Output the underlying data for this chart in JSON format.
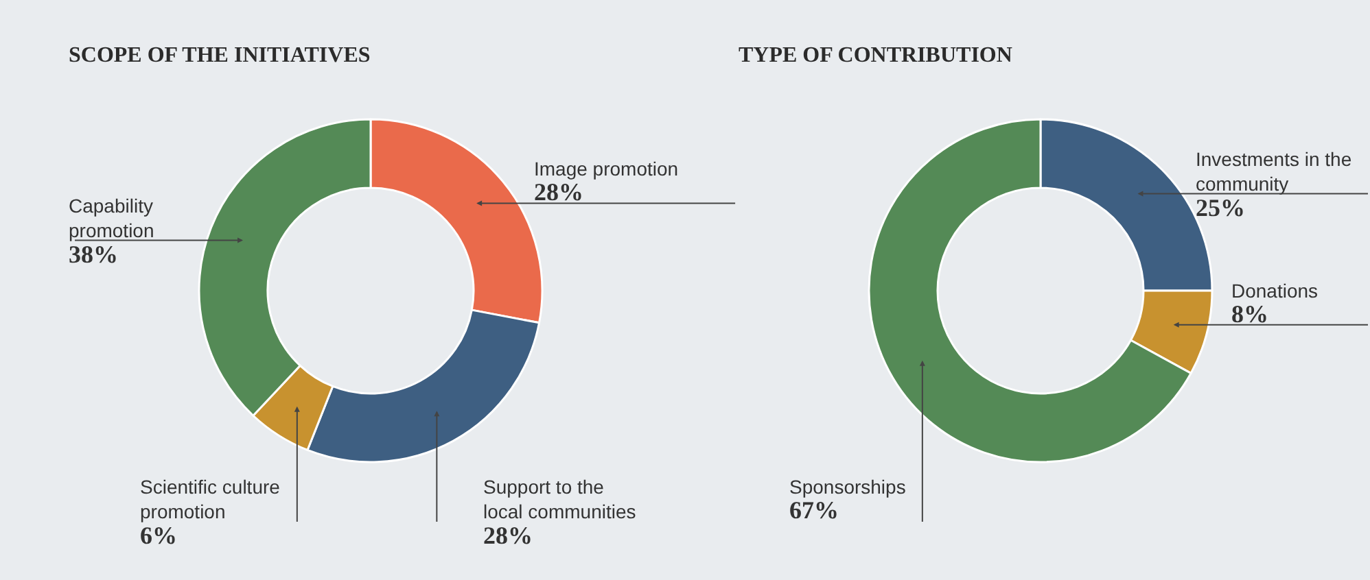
{
  "chart_data": [
    {
      "type": "donut",
      "title": "SCOPE OF THE INITIATIVES",
      "categories": [
        "Image promotion",
        "Support to the local communities",
        "Scientific culture promotion",
        "Capability promotion"
      ],
      "values": [
        28,
        28,
        6,
        38
      ],
      "colors": [
        "#ea6a4b",
        "#3e5f82",
        "#c8922f",
        "#548a56"
      ],
      "value_labels": [
        "28%",
        "28%",
        "6%",
        "38%"
      ]
    },
    {
      "type": "donut",
      "title": "TYPE OF CONTRIBUTION",
      "categories": [
        "Investments in the community",
        "Donations",
        "Sponsorships"
      ],
      "values": [
        25,
        8,
        67
      ],
      "colors": [
        "#3e5f82",
        "#c8922f",
        "#548a56"
      ],
      "value_labels": [
        "25%",
        "8%",
        "67%"
      ]
    }
  ]
}
